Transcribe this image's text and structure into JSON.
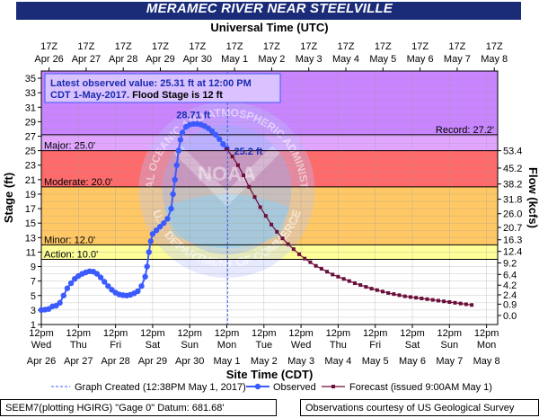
{
  "title": "MERAMEC RIVER NEAR STEELVILLE",
  "chart_data": {
    "type": "line",
    "top_axis_title": "Universal Time (UTC)",
    "bottom_axis_title": "Site Time (CDT)",
    "ylabel_left": "Stage (ft)",
    "ylabel_right": "Flow (kcfs)",
    "ylim": [
      1,
      36
    ],
    "xlim": [
      0,
      12.3
    ],
    "x_unit": "days from 12pm Apr 26 (CDT)",
    "left_ticks": [
      1,
      3,
      5,
      7,
      9,
      11,
      13,
      15,
      17,
      19,
      21,
      23,
      25,
      27,
      29,
      31,
      33,
      35
    ],
    "right_ticks": [
      {
        "stage": 2.25,
        "label": "0.0"
      },
      {
        "stage": 3.81,
        "label": "0.9"
      },
      {
        "stage": 5.1,
        "label": "2.4"
      },
      {
        "stage": 6.43,
        "label": "4.2"
      },
      {
        "stage": 7.91,
        "label": "6.4"
      },
      {
        "stage": 9.5,
        "label": "9.2"
      },
      {
        "stage": 11.1,
        "label": "12.4"
      },
      {
        "stage": 12.7,
        "label": "16.3"
      },
      {
        "stage": 14.4,
        "label": "20.7"
      },
      {
        "stage": 16.3,
        "label": "26.0"
      },
      {
        "stage": 18.3,
        "label": "31.8"
      },
      {
        "stage": 20.4,
        "label": "38.2"
      },
      {
        "stage": 22.6,
        "label": "45.2"
      },
      {
        "stage": 25.0,
        "label": "53.4"
      }
    ],
    "bottom_ticks": [
      {
        "time": "12pm",
        "day": "Wed",
        "date": "Apr 26"
      },
      {
        "time": "12pm",
        "day": "Thu",
        "date": "Apr 27"
      },
      {
        "time": "12pm",
        "day": "Fri",
        "date": "Apr 28"
      },
      {
        "time": "12pm",
        "day": "Sat",
        "date": "Apr 29"
      },
      {
        "time": "12pm",
        "day": "Sun",
        "date": "Apr 30"
      },
      {
        "time": "12pm",
        "day": "Mon",
        "date": "May 1"
      },
      {
        "time": "12pm",
        "day": "Tue",
        "date": "May 2"
      },
      {
        "time": "12pm",
        "day": "Wed",
        "date": "May 3"
      },
      {
        "time": "12pm",
        "day": "Thu",
        "date": "May 4"
      },
      {
        "time": "12pm",
        "day": "Fri",
        "date": "May 5"
      },
      {
        "time": "12pm",
        "day": "Sat",
        "date": "May 6"
      },
      {
        "time": "12pm",
        "day": "Sun",
        "date": "May 7"
      },
      {
        "time": "12pm",
        "day": "Mon",
        "date": "May 8"
      }
    ],
    "top_ticks": [
      {
        "time": "17Z",
        "date": "Apr 26"
      },
      {
        "time": "17Z",
        "date": "Apr 27"
      },
      {
        "time": "17Z",
        "date": "Apr 28"
      },
      {
        "time": "17Z",
        "date": "Apr 29"
      },
      {
        "time": "17Z",
        "date": "Apr 30"
      },
      {
        "time": "17Z",
        "date": "May 1"
      },
      {
        "time": "17Z",
        "date": "May 2"
      },
      {
        "time": "17Z",
        "date": "May 3"
      },
      {
        "time": "17Z",
        "date": "May 4"
      },
      {
        "time": "17Z",
        "date": "May 5"
      },
      {
        "time": "17Z",
        "date": "May 6"
      },
      {
        "time": "17Z",
        "date": "May 7"
      },
      {
        "time": "17Z",
        "date": "May 8"
      }
    ],
    "flood_categories": [
      {
        "name": "Action",
        "label": "Action: 10.0'",
        "stage": 10.0,
        "color": "#ffff99"
      },
      {
        "name": "Minor",
        "label": "Minor: 12.0'",
        "stage": 12.0,
        "color": "#ffc864"
      },
      {
        "name": "Moderate",
        "label": "Moderate: 20.0'",
        "stage": 20.0,
        "color": "#ff6a6a"
      },
      {
        "name": "Major",
        "label": "Major: 25.0'",
        "stage": 25.0,
        "color": "#e1a5ff"
      },
      {
        "name": "Record",
        "label": "Record: 27.2'",
        "stage": 27.2,
        "color": "#c984ff"
      }
    ],
    "observed_latest": {
      "line1": "Latest observed value: 25.31 ft at 12:00 PM",
      "line2_prefix": "CDT 1-May-2017.",
      "line2_suffix": "Flood Stage is 12 ft"
    },
    "annotations": [
      {
        "text": "28.71 ft",
        "x": 4.17,
        "y": 28.71
      },
      {
        "text": "25.2 ft",
        "x": 5.0,
        "y": 25.2
      }
    ],
    "graph_created_x": 5.02,
    "series": [
      {
        "name": "Observed",
        "color": "#3b5bff",
        "points": [
          [
            0,
            3
          ],
          [
            0.1,
            3.05
          ],
          [
            0.2,
            3.15
          ],
          [
            0.3,
            3.5
          ],
          [
            0.4,
            3.6
          ],
          [
            0.5,
            4
          ],
          [
            0.6,
            5
          ],
          [
            0.7,
            6
          ],
          [
            0.8,
            6.7
          ],
          [
            0.9,
            7.3
          ],
          [
            1.0,
            7.7
          ],
          [
            1.1,
            8.0
          ],
          [
            1.2,
            8.2
          ],
          [
            1.3,
            8.35
          ],
          [
            1.4,
            8.3
          ],
          [
            1.5,
            8.0
          ],
          [
            1.6,
            7.5
          ],
          [
            1.7,
            6.9
          ],
          [
            1.8,
            6.3
          ],
          [
            1.9,
            5.8
          ],
          [
            2.0,
            5.4
          ],
          [
            2.1,
            5.15
          ],
          [
            2.2,
            5.05
          ],
          [
            2.3,
            5.0
          ],
          [
            2.4,
            5.1
          ],
          [
            2.5,
            5.3
          ],
          [
            2.6,
            5.6
          ],
          [
            2.7,
            6.3
          ],
          [
            2.8,
            7.6
          ],
          [
            2.85,
            9.0
          ],
          [
            2.9,
            11.0
          ],
          [
            2.95,
            12.5
          ],
          [
            3.0,
            13.5
          ],
          [
            3.1,
            14.0
          ],
          [
            3.2,
            14.5
          ],
          [
            3.3,
            15.0
          ],
          [
            3.4,
            15.6
          ],
          [
            3.5,
            17.0
          ],
          [
            3.55,
            19.0
          ],
          [
            3.6,
            21.0
          ],
          [
            3.65,
            23.0
          ],
          [
            3.7,
            25.0
          ],
          [
            3.75,
            26.5
          ],
          [
            3.8,
            27.5
          ],
          [
            3.9,
            28.3
          ],
          [
            4.0,
            28.6
          ],
          [
            4.1,
            28.7
          ],
          [
            4.2,
            28.71
          ],
          [
            4.3,
            28.6
          ],
          [
            4.4,
            28.4
          ],
          [
            4.5,
            28.1
          ],
          [
            4.6,
            27.7
          ],
          [
            4.7,
            27.2
          ],
          [
            4.8,
            26.6
          ],
          [
            4.9,
            25.9
          ],
          [
            5.0,
            25.31
          ]
        ]
      },
      {
        "name": "Forecast",
        "color": "#6b0f3a",
        "points": [
          [
            5.0,
            25.2
          ],
          [
            5.15,
            24.2
          ],
          [
            5.3,
            23.0
          ],
          [
            5.45,
            21.6
          ],
          [
            5.6,
            20.0
          ],
          [
            5.75,
            18.6
          ],
          [
            5.9,
            17.2
          ],
          [
            6.05,
            16.0
          ],
          [
            6.2,
            14.8
          ],
          [
            6.35,
            13.8
          ],
          [
            6.5,
            12.9
          ],
          [
            6.65,
            12.1
          ],
          [
            6.8,
            11.4
          ],
          [
            6.95,
            10.7
          ],
          [
            7.1,
            10.1
          ],
          [
            7.25,
            9.6
          ],
          [
            7.4,
            9.1
          ],
          [
            7.55,
            8.7
          ],
          [
            7.7,
            8.3
          ],
          [
            7.85,
            7.9
          ],
          [
            8.0,
            7.6
          ],
          [
            8.15,
            7.3
          ],
          [
            8.3,
            7.0
          ],
          [
            8.45,
            6.7
          ],
          [
            8.6,
            6.45
          ],
          [
            8.75,
            6.2
          ],
          [
            8.9,
            5.95
          ],
          [
            9.05,
            5.75
          ],
          [
            9.2,
            5.55
          ],
          [
            9.35,
            5.35
          ],
          [
            9.5,
            5.2
          ],
          [
            9.65,
            5.05
          ],
          [
            9.8,
            4.9
          ],
          [
            9.95,
            4.8
          ],
          [
            10.1,
            4.7
          ],
          [
            10.25,
            4.6
          ],
          [
            10.4,
            4.5
          ],
          [
            10.55,
            4.4
          ],
          [
            10.7,
            4.3
          ],
          [
            10.85,
            4.2
          ],
          [
            11.0,
            4.1
          ],
          [
            11.15,
            4.0
          ],
          [
            11.3,
            3.9
          ],
          [
            11.45,
            3.8
          ],
          [
            11.6,
            3.7
          ]
        ]
      }
    ],
    "legend": {
      "graph_created": "Graph Created (12:38PM May 1, 2017)",
      "observed": "Observed",
      "forecast": "Forecast (issued 9:00AM May 1)"
    },
    "watermark": {
      "top": "NATIONAL OCEANIC AND ATMOSPHERIC ADMINISTRATION",
      "bottom": "U.S. DEPARTMENT OF COMMERCE",
      "center": "NOAA"
    }
  },
  "footer": {
    "left": "SEEM7(plotting HGIRG) \"Gage 0\" Datum: 681.68'",
    "right": "Observations courtesy of US Geological Survey"
  }
}
